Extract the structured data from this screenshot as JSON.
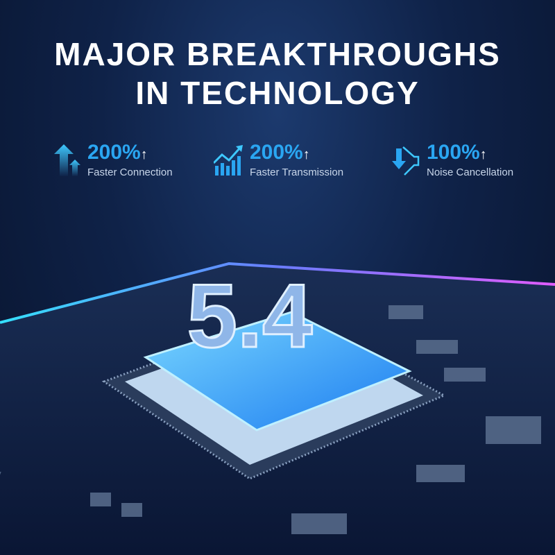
{
  "headline": {
    "line1": "MAJOR BREAKTHROUGHS",
    "line2": "IN TECHNOLOGY"
  },
  "stats": [
    {
      "value": "200%",
      "label": "Faster Connection",
      "icon": "arrows-up-icon"
    },
    {
      "value": "200%",
      "label": "Faster Transmission",
      "icon": "bar-chart-rising-icon"
    },
    {
      "value": "100%",
      "label": "Noise Cancellation",
      "icon": "speaker-down-icon"
    }
  ],
  "up_arrow": "↑",
  "chip_label": "5.4",
  "colors": {
    "accent": "#2aa6f2",
    "background": "#0f2248",
    "glow_cyan": "#35e0ff",
    "glow_pink": "#e05cff"
  }
}
